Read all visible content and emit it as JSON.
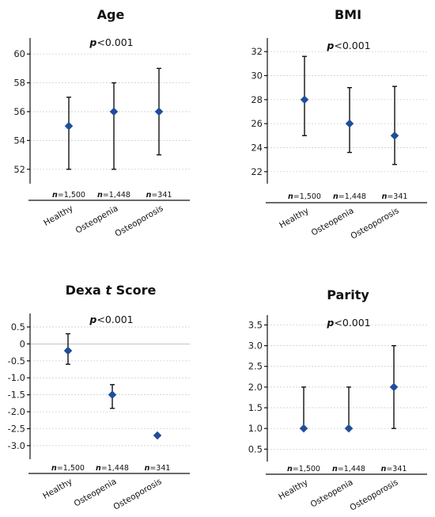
{
  "chart_data": [
    {
      "type": "scatter",
      "title": "Age",
      "title_italic_part": "",
      "title_suffix": "",
      "annotation_italic": "p",
      "annotation_rest": "<0.001",
      "categories": [
        "Healthy",
        "Osteopenia",
        "Osteoporosis"
      ],
      "n_labels": [
        "1,500",
        "1,448",
        "341"
      ],
      "ylim": [
        51,
        61
      ],
      "yticks": [
        52,
        54,
        56,
        58,
        60
      ],
      "tick_labels": [
        "52",
        "54",
        "56",
        "58",
        "60"
      ],
      "series": [
        {
          "values": [
            55,
            56,
            56
          ],
          "lower": [
            52,
            52,
            53
          ],
          "upper": [
            57,
            58,
            59
          ]
        }
      ],
      "grid": true,
      "marker_color": "#1f4e9a"
    },
    {
      "type": "scatter",
      "title": "BMI",
      "title_italic_part": "",
      "title_suffix": "",
      "annotation_italic": "p",
      "annotation_rest": "<0.001",
      "categories": [
        "Healthy",
        "Osteopenia",
        "Osteoporosis"
      ],
      "n_labels": [
        "1,500",
        "1,448",
        "341"
      ],
      "ylim": [
        21,
        33
      ],
      "yticks": [
        22,
        24,
        26,
        28,
        30,
        32
      ],
      "tick_labels": [
        "22",
        "24",
        "26",
        "28",
        "30",
        "32"
      ],
      "series": [
        {
          "values": [
            28,
            26,
            25
          ],
          "lower": [
            25,
            23.6,
            22.6
          ],
          "upper": [
            31.6,
            29,
            29.1
          ]
        }
      ],
      "grid": true,
      "marker_color": "#1f4e9a"
    },
    {
      "type": "scatter",
      "title": "Dexa ",
      "title_italic_part": "t",
      "title_suffix": " Score",
      "annotation_italic": "p",
      "annotation_rest": "<0.001",
      "categories": [
        "Healthy",
        "Osteopenia",
        "Osteoporosis"
      ],
      "n_labels": [
        "1,500",
        "1,448",
        "341"
      ],
      "ylim": [
        -3.4,
        0.85
      ],
      "yticks": [
        -3,
        -2.5,
        -2,
        -1.5,
        -1,
        -0.5,
        0,
        0.5
      ],
      "tick_labels": [
        "-3.0",
        "-2.5",
        "-2.0",
        "-1.5",
        "-1.0",
        "-0.5",
        "0",
        "0.5"
      ],
      "series": [
        {
          "values": [
            -0.2,
            -1.5,
            -2.7
          ],
          "lower": [
            -0.6,
            -1.9,
            null
          ],
          "upper": [
            0.3,
            -1.2,
            null
          ]
        }
      ],
      "grid": true,
      "marker_color": "#1f4e9a"
    },
    {
      "type": "scatter",
      "title": "Parity",
      "title_italic_part": "",
      "title_suffix": "",
      "annotation_italic": "p",
      "annotation_rest": "<0.001",
      "categories": [
        "Healthy",
        "Osteopenia",
        "Osteoporosis"
      ],
      "n_labels": [
        "1,500",
        "1,448",
        "341"
      ],
      "ylim": [
        0.2,
        3.7
      ],
      "yticks": [
        0.5,
        1,
        1.5,
        2,
        2.5,
        3,
        3.5
      ],
      "tick_labels": [
        "0.5",
        "1.0",
        "1.5",
        "2.0",
        "2.5",
        "3.0",
        "3.5"
      ],
      "series": [
        {
          "values": [
            1,
            1,
            2
          ],
          "lower": [
            1,
            1,
            1
          ],
          "upper": [
            2,
            2,
            3
          ]
        }
      ],
      "grid": true,
      "marker_color": "#1f4e9a"
    }
  ]
}
